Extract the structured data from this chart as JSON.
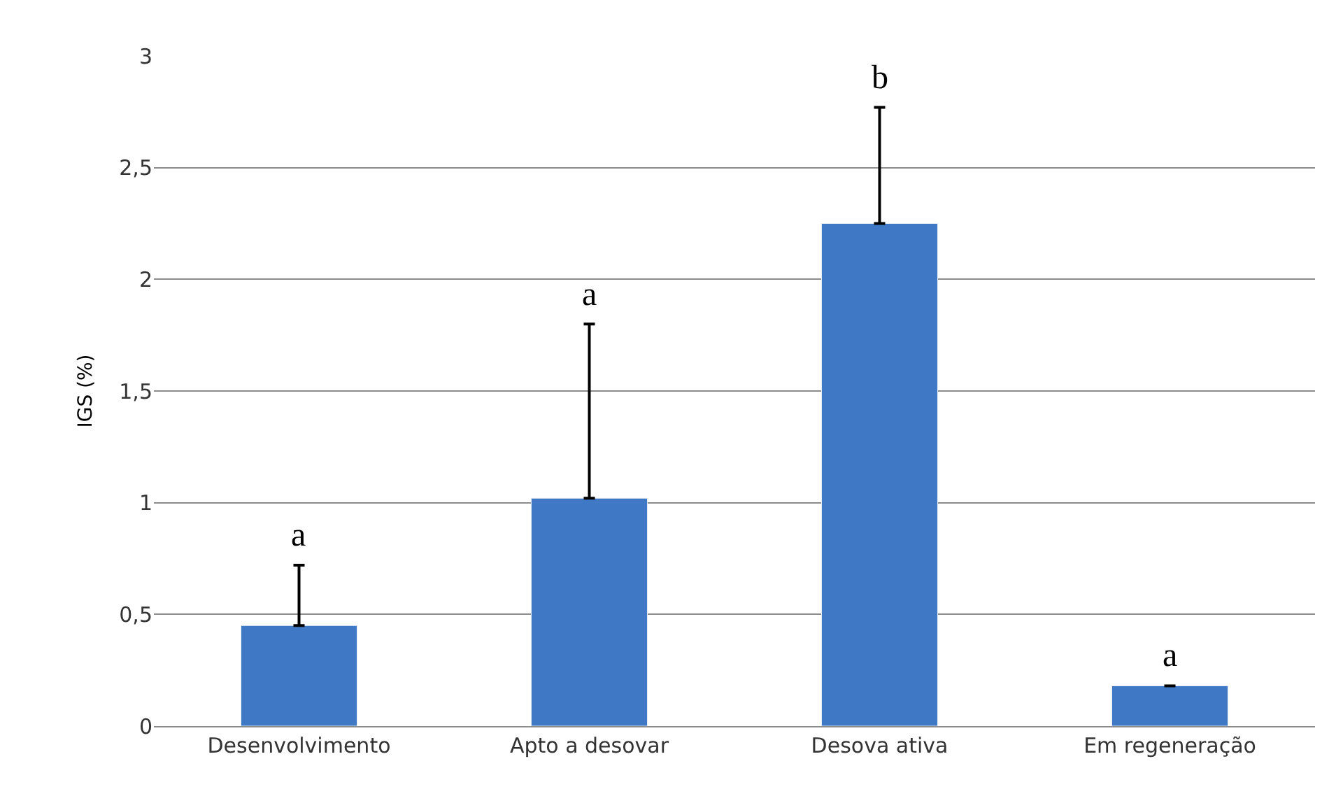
{
  "chart_data": {
    "type": "bar",
    "ylabel": "IGS (%)",
    "categories": [
      "Desenvolvimento",
      "Apto a desovar",
      "Desova ativa",
      "Em regeneração"
    ],
    "values": [
      0.45,
      1.02,
      2.25,
      0.18
    ],
    "errors": [
      [
        0.45,
        0.72
      ],
      [
        1.02,
        1.8
      ],
      [
        2.25,
        2.77
      ],
      null
    ],
    "color": "#3f78c4",
    "ylim": [
      0,
      3
    ],
    "yticks": [
      0,
      {
        "value": 0.5,
        "label": "0,5"
      },
      1,
      {
        "value": 1.5,
        "label": "1,5"
      },
      2,
      {
        "value": 2.5,
        "label": "2,5"
      },
      3
    ],
    "grid": "y",
    "legend": false,
    "annotations": [
      "a",
      "a",
      "b",
      "a"
    ]
  }
}
